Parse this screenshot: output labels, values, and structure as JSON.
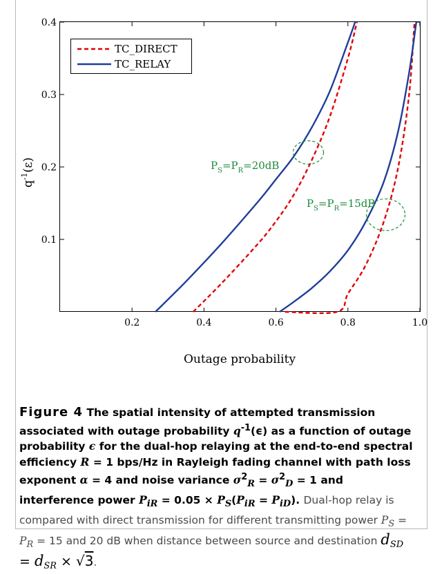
{
  "chart_data": {
    "type": "line",
    "xlabel": "Outage probability",
    "ylabel": "q",
    "ylabel_sup": "-1",
    "ylabel_arg": "(ε)",
    "xlim": [
      0,
      1
    ],
    "ylim": [
      0,
      0.4
    ],
    "x_ticks": [
      0.2,
      0.4,
      0.6,
      0.8,
      1.0
    ],
    "x_tick_labels": [
      "0.2",
      "0.4",
      "0.6",
      "0.8",
      "1.0"
    ],
    "y_ticks": [
      0.1,
      0.2,
      0.3,
      0.4
    ],
    "y_tick_labels": [
      "0.1",
      "0.2",
      "0.3",
      "0.4"
    ],
    "grid": false,
    "legend_position": "top-left",
    "series": [
      {
        "name": "TC_DIRECT",
        "group": "20dB",
        "color": "#e00000",
        "style": "dashed",
        "points": [
          [
            0.37,
            0.0
          ],
          [
            0.45,
            0.04
          ],
          [
            0.55,
            0.094
          ],
          [
            0.6,
            0.125
          ],
          [
            0.65,
            0.162
          ],
          [
            0.7,
            0.21
          ],
          [
            0.75,
            0.27
          ],
          [
            0.8,
            0.35
          ],
          [
            0.825,
            0.4
          ]
        ]
      },
      {
        "name": "TC_RELAY",
        "group": "20dB",
        "color": "#1f3d99",
        "style": "solid",
        "points": [
          [
            0.265,
            0.0
          ],
          [
            0.35,
            0.042
          ],
          [
            0.45,
            0.095
          ],
          [
            0.55,
            0.152
          ],
          [
            0.6,
            0.183
          ],
          [
            0.65,
            0.215
          ],
          [
            0.7,
            0.255
          ],
          [
            0.75,
            0.305
          ],
          [
            0.8,
            0.372
          ],
          [
            0.82,
            0.4
          ]
        ]
      },
      {
        "name": "TC_DIRECT",
        "group": "15dB",
        "color": "#e00000",
        "style": "dashed",
        "points": [
          [
            0.625,
            0.0
          ],
          [
            0.77,
            0.0
          ],
          [
            0.8,
            0.025
          ],
          [
            0.85,
            0.065
          ],
          [
            0.9,
            0.125
          ],
          [
            0.94,
            0.2
          ],
          [
            0.97,
            0.3
          ],
          [
            0.985,
            0.4
          ]
        ]
      },
      {
        "name": "TC_RELAY",
        "group": "15dB",
        "color": "#1f3d99",
        "style": "solid",
        "points": [
          [
            0.61,
            0.0
          ],
          [
            0.65,
            0.014
          ],
          [
            0.7,
            0.033
          ],
          [
            0.75,
            0.056
          ],
          [
            0.8,
            0.085
          ],
          [
            0.85,
            0.125
          ],
          [
            0.9,
            0.18
          ],
          [
            0.94,
            0.25
          ],
          [
            0.97,
            0.33
          ],
          [
            0.99,
            0.4
          ]
        ]
      }
    ],
    "annotations": [
      {
        "label": "P",
        "s1": "S",
        "mid": "=P",
        "s2": "R",
        "tail": "=20dB",
        "x": 0.69,
        "y": 0.22,
        "color": "#1a8a3a"
      },
      {
        "label": "P",
        "s1": "S",
        "mid": "=P",
        "s2": "R",
        "tail": "=15dB",
        "x": 0.905,
        "y": 0.134,
        "color": "#1a8a3a"
      }
    ],
    "legend": [
      {
        "label": "TC_DIRECT",
        "color": "#e00000",
        "style": "dashed"
      },
      {
        "label": "TC_RELAY",
        "color": "#1f3d99",
        "style": "solid"
      }
    ]
  },
  "caption": {
    "figure_label": "Figure 4",
    "title_text": " The spatial intensity of attempted transmission associated with outage probability ",
    "q_symbol": "q",
    "q_sup": "-1",
    "q_arg": "(ϵ)",
    "title_text2": " as a function of outage probability ",
    "eps": "ϵ",
    "title_text3": " for the dual-hop relaying at the end-to-end spectral efficiency ",
    "R_sym": "R",
    "R_val": " = 1 bps/Hz in Rayleigh fading channel with path loss exponent ",
    "alpha_sym": "α",
    "alpha_val": " = 4 and noise variance ",
    "sigma": "σ",
    "sig_R_sub": "R",
    "sig_D_sub": "D",
    "sig_val": " = 1 and interference power ",
    "P_iR": "P",
    "P_iR_sub": "iR",
    "P_val": " = 0.05 × ",
    "P_S": "P",
    "P_S_sub": "S",
    "P_paren_open": "(",
    "P_iR2": "P",
    "P_iR2_sub": "iR",
    "eq": " = ",
    "P_iD": "P",
    "P_iD_sub": "iD",
    "P_paren_close": ").",
    "plain1": " Dual-hop relay is compared with direct transmission for different transmitting power ",
    "ps": "P",
    "ps_sub": "S",
    "eq2": " = ",
    "pr": "P",
    "pr_sub": "R",
    "plain2": " = 15 and 20 dB when distance between source and destination ",
    "d_sd": "d",
    "d_sd_sub": "SD",
    "d_eq": " = ",
    "d_sr": "d",
    "d_sr_sub": "SR",
    "times": " × ",
    "sqrt_num": "3",
    "end": "."
  }
}
